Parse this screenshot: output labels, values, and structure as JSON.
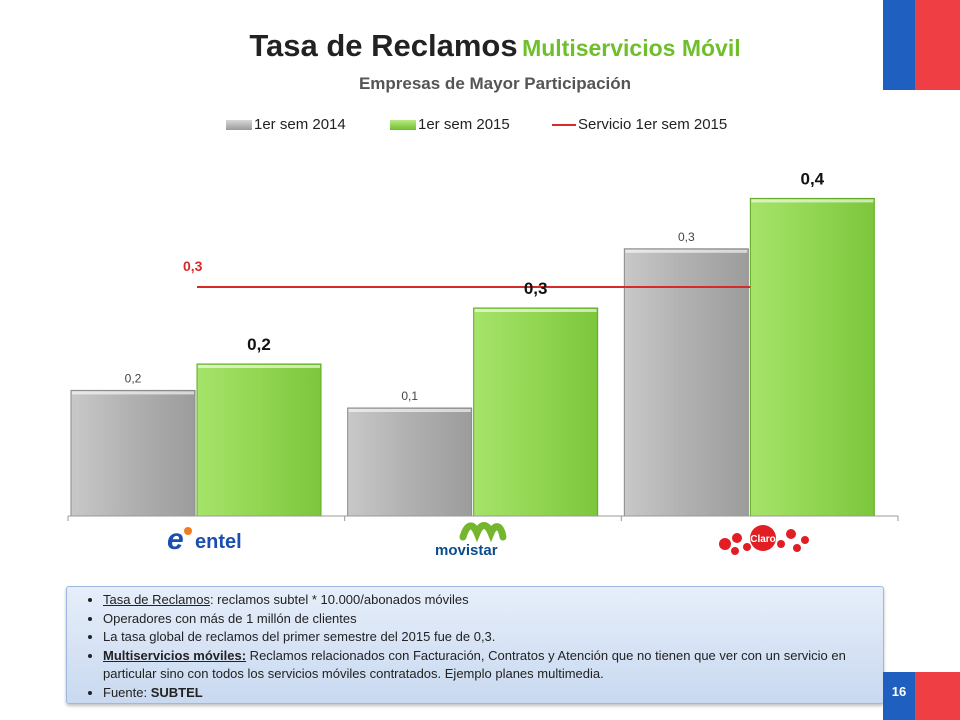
{
  "header": {
    "title_main": "Tasa de Reclamos",
    "title_accent": "Multiservicios Móvil",
    "subtitle": "Empresas de Mayor Participación"
  },
  "chart_data": {
    "type": "bar",
    "categories": [
      "entel",
      "movistar",
      "Claro"
    ],
    "series": [
      {
        "name": "1er sem 2014",
        "values": [
          0.2,
          0.1,
          0.3
        ],
        "labels": [
          "0,2",
          "0,1",
          "0,3"
        ],
        "color": "#aaaaaa"
      },
      {
        "name": "1er sem 2015",
        "values": [
          0.2,
          0.3,
          0.4
        ],
        "labels": [
          "0,2",
          "0,3",
          "0,4"
        ],
        "color": "#8fd14f"
      }
    ],
    "reference_line": {
      "name": "Servicio 1er sem 2015",
      "value": 0.3,
      "label": "0,3",
      "color": "#d62b2b"
    },
    "legend_position": "top",
    "grid": false
  },
  "logos": {
    "entel": "entel",
    "movistar": "movistar",
    "claro": "Claro"
  },
  "notes": {
    "item1_term": "Tasa de Reclamos",
    "item1_text": ": reclamos subtel * 10.000/abonados móviles",
    "item2": "Operadores con más de  1 millón de clientes",
    "item3": "La tasa global de reclamos del primer semestre del 2015 fue de 0,3.",
    "item4_term": "Multiservicios móviles:",
    "item4_text": " Reclamos relacionados con Facturación, Contratos y Atención que no tienen que ver con un servicio en particular sino con todos los servicios móviles contratados. Ejemplo planes multimedia.",
    "item5_label": "Fuente: ",
    "item5_value": "SUBTEL"
  },
  "page_number": "16",
  "colors": {
    "flag_blue": "#1f5fbf",
    "flag_red": "#ef3f45",
    "accent_green": "#6fbf2c"
  }
}
